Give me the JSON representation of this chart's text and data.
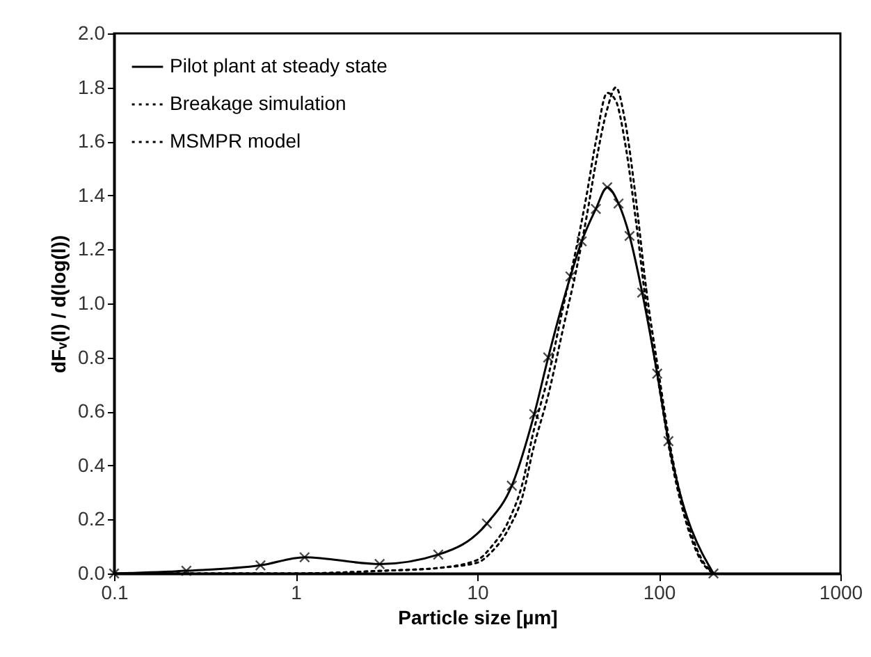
{
  "chart_data": {
    "type": "line",
    "xlabel": "Particle size [µm]",
    "ylabel": "dFᵥ(l) / d(log(l))",
    "log": "x",
    "xlim": [
      0.1,
      1000
    ],
    "xticks": [
      0.1,
      1,
      10,
      100,
      1000
    ],
    "ylim": [
      0,
      2
    ],
    "yticks": [
      {
        "value": 0,
        "label": "0.0"
      },
      {
        "value": 0.2,
        "label": "0.2"
      },
      {
        "value": 0.4,
        "label": "0.4"
      },
      {
        "value": 0.6,
        "label": "0.6"
      },
      {
        "value": 0.8,
        "label": "0.8"
      },
      {
        "value": 1,
        "label": "1.0"
      },
      {
        "value": 1.2,
        "label": "1.2"
      },
      {
        "value": 1.4,
        "label": "1.4"
      },
      {
        "value": 1.6,
        "label": "1.6"
      },
      {
        "value": 1.8,
        "label": "1.8"
      },
      {
        "value": 2,
        "label": "2.0"
      }
    ],
    "grid": false,
    "legend": "top left",
    "series": [
      {
        "name": "Pilot plant at steady state",
        "color": "#000000",
        "line_style": "solid",
        "marker": "cross",
        "x": [
          0.1,
          0.25,
          0.64,
          1.12,
          2.9,
          6.1,
          11.3,
          15.5,
          20.6,
          24.6,
          32.6,
          37.6,
          45,
          52,
          60,
          69,
          81,
          98,
          113,
          200
        ],
        "values": [
          0,
          0.01,
          0.03,
          0.06,
          0.035,
          0.07,
          0.185,
          0.325,
          0.59,
          0.8,
          1.1,
          1.23,
          1.35,
          1.43,
          1.37,
          1.25,
          1.04,
          0.74,
          0.49,
          0
        ]
      },
      {
        "name": "Breakage simulation",
        "color": "#000000",
        "line_style": "dotted",
        "marker": "none",
        "x": [
          0.1,
          1,
          3,
          6,
          10,
          12,
          15,
          18,
          20,
          25,
          30,
          35,
          40,
          45,
          52,
          58,
          65,
          75,
          85,
          100,
          115,
          140,
          170,
          200
        ],
        "values": [
          0,
          0,
          0.01,
          0.02,
          0.05,
          0.1,
          0.2,
          0.35,
          0.5,
          0.75,
          1.0,
          1.2,
          1.4,
          1.6,
          1.78,
          1.75,
          1.6,
          1.3,
          1.0,
          0.7,
          0.45,
          0.2,
          0.05,
          0
        ]
      },
      {
        "name": "MSMPR model",
        "color": "#000000",
        "line_style": "dotted",
        "marker": "none",
        "x": [
          0.1,
          1,
          3,
          6,
          10,
          12,
          15,
          18,
          20,
          25,
          30,
          35,
          40,
          45,
          52,
          58,
          65,
          75,
          85,
          100,
          115,
          140,
          170,
          200
        ],
        "values": [
          0,
          0,
          0.01,
          0.02,
          0.04,
          0.08,
          0.17,
          0.3,
          0.44,
          0.68,
          0.92,
          1.12,
          1.32,
          1.52,
          1.72,
          1.8,
          1.68,
          1.38,
          1.06,
          0.74,
          0.48,
          0.22,
          0.06,
          0
        ]
      }
    ]
  }
}
